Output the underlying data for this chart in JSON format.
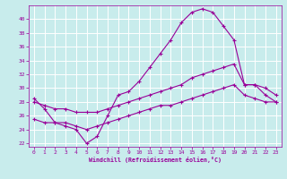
{
  "xlabel": "Windchill (Refroidissement éolien,°C)",
  "bg_color": "#c8ecec",
  "line_color": "#990099",
  "grid_color": "#ffffff",
  "xlim": [
    -0.5,
    23.5
  ],
  "ylim": [
    21.5,
    42.0
  ],
  "xticks": [
    0,
    1,
    2,
    3,
    4,
    5,
    6,
    7,
    8,
    9,
    10,
    11,
    12,
    13,
    14,
    15,
    16,
    17,
    18,
    19,
    20,
    21,
    22,
    23
  ],
  "yticks": [
    22,
    24,
    26,
    28,
    30,
    32,
    34,
    36,
    38,
    40
  ],
  "line1_x": [
    0,
    1,
    2,
    3,
    4,
    5,
    6,
    7,
    8,
    9,
    10,
    11,
    12,
    13,
    14,
    15,
    16,
    17,
    18,
    19,
    20,
    21,
    22,
    23
  ],
  "line1_y": [
    28.5,
    27.0,
    25.0,
    24.5,
    24.0,
    22.0,
    23.0,
    26.0,
    29.0,
    29.5,
    31.0,
    33.0,
    35.0,
    37.0,
    39.5,
    41.0,
    41.5,
    41.0,
    39.0,
    37.0,
    30.5,
    30.5,
    29.0,
    28.0
  ],
  "line2_x": [
    0,
    1,
    2,
    3,
    4,
    5,
    6,
    7,
    8,
    9,
    10,
    11,
    12,
    13,
    14,
    15,
    16,
    17,
    18,
    19,
    20,
    21,
    22,
    23
  ],
  "line2_y": [
    28.0,
    27.5,
    27.0,
    27.0,
    26.5,
    26.5,
    26.5,
    27.0,
    27.5,
    28.0,
    28.5,
    29.0,
    29.5,
    30.0,
    30.5,
    31.5,
    32.0,
    32.5,
    33.0,
    33.5,
    30.5,
    30.5,
    30.0,
    29.0
  ],
  "line3_x": [
    0,
    1,
    2,
    3,
    4,
    5,
    6,
    7,
    8,
    9,
    10,
    11,
    12,
    13,
    14,
    15,
    16,
    17,
    18,
    19,
    20,
    21,
    22,
    23
  ],
  "line3_y": [
    25.5,
    25.0,
    25.0,
    25.0,
    24.5,
    24.0,
    24.5,
    25.0,
    25.5,
    26.0,
    26.5,
    27.0,
    27.5,
    27.5,
    28.0,
    28.5,
    29.0,
    29.5,
    30.0,
    30.5,
    29.0,
    28.5,
    28.0,
    28.0
  ]
}
